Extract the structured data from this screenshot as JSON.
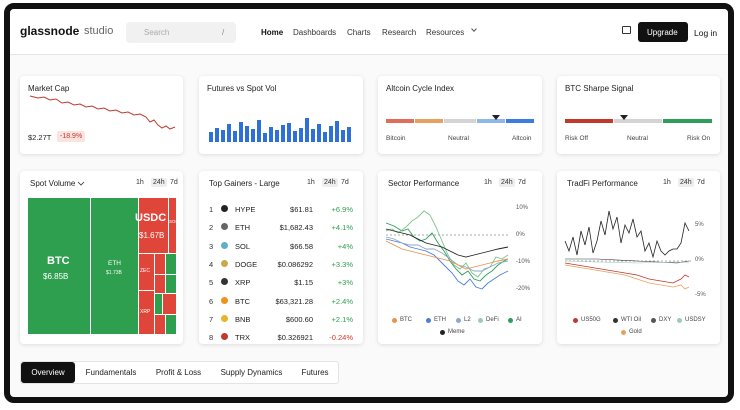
{
  "nav": {
    "logo": "glassnode",
    "logo_sub": "studio",
    "search_placeholder": "Search",
    "search_shortcut": "/",
    "links": [
      "Home",
      "Dashboards",
      "Charts",
      "Research",
      "Resources"
    ],
    "upgrade": "Upgrade",
    "login": "Log in"
  },
  "cards": {
    "market_cap": {
      "title": "Market Cap",
      "value": "$2.27T",
      "change": "-18.9%"
    },
    "futures_spot": {
      "title": "Futures vs Spot Vol"
    },
    "altcoin_cycle": {
      "title": "Altcoin Cycle Index",
      "labels": [
        "Bitcoin",
        "Neutral",
        "Altcoin"
      ]
    },
    "btc_sharpe": {
      "title": "BTC Sharpe Signal",
      "labels": [
        "Risk Off",
        "Neutral",
        "Risk On"
      ]
    },
    "spot_volume": {
      "title": "Spot Volume",
      "timeframes": [
        "1h",
        "24h",
        "7d"
      ],
      "tiles": [
        {
          "label": "BTC",
          "value": "$6.85B"
        },
        {
          "label": "ETH",
          "value": "$1.73B"
        },
        {
          "label": "USDC",
          "value": "$1.67B"
        },
        {
          "label": "SOL"
        },
        {
          "label": "ZEC"
        },
        {
          "label": "XRP"
        }
      ]
    },
    "top_gainers": {
      "title": "Top Gainers - Large",
      "timeframes": [
        "1h",
        "24h",
        "7d"
      ],
      "rows": [
        [
          "1",
          "HYPE",
          "$61.81",
          "+6.9%"
        ],
        [
          "2",
          "ETH",
          "$1,682.43",
          "+4.1%"
        ],
        [
          "3",
          "SOL",
          "$66.58",
          "+4%"
        ],
        [
          "4",
          "DOGE",
          "$0.086292",
          "+3.3%"
        ],
        [
          "5",
          "XRP",
          "$1.15",
          "+3%"
        ],
        [
          "6",
          "BTC",
          "$63,321.28",
          "+2.4%"
        ],
        [
          "7",
          "BNB",
          "$600.60",
          "+2.1%"
        ],
        [
          "8",
          "TRX",
          "$0.326921",
          "-0.24%"
        ]
      ]
    },
    "sector": {
      "title": "Sector Performance",
      "timeframes": [
        "1h",
        "24h",
        "7d"
      ],
      "axis": [
        "10%",
        "0%",
        "-10%",
        "-20%"
      ],
      "legend": [
        "BTC",
        "ETH",
        "L2",
        "DeFi",
        "AI",
        "Meme"
      ]
    },
    "tradfi": {
      "title": "TradFi Performance",
      "timeframes": [
        "1h",
        "24h",
        "7d"
      ],
      "axis": [
        "5%",
        "0%",
        "-5%"
      ],
      "legend": [
        "US50G",
        "WTI Oil",
        "DXY",
        "USDSY",
        "Gold"
      ]
    }
  },
  "tabs": [
    "Overview",
    "Fundamentals",
    "Profit & Loss",
    "Supply Dynamics",
    "Futures"
  ]
}
